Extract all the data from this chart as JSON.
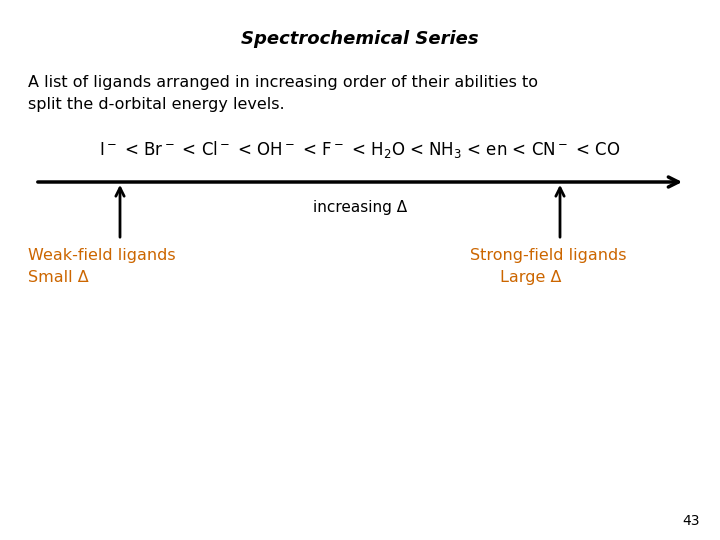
{
  "title": "Spectrochemical Series",
  "title_fontsize": 13,
  "bg_color": "#ffffff",
  "description_line1": "A list of ligands arranged in increasing order of their abilities to",
  "description_line2": "split the d-orbital energy levels.",
  "desc_fontsize": 11.5,
  "series_label": "increasing Δ",
  "series_label_fontsize": 11,
  "arrow_color": "#000000",
  "weak_label_line1": "Weak-field ligands",
  "weak_label_line2": "Small Δ",
  "strong_label_line1": "Strong-field ligands",
  "strong_label_line2": "Large Δ",
  "orange_color": "#CC6600",
  "label_fontsize": 11.5,
  "page_number": "43",
  "page_fontsize": 10
}
